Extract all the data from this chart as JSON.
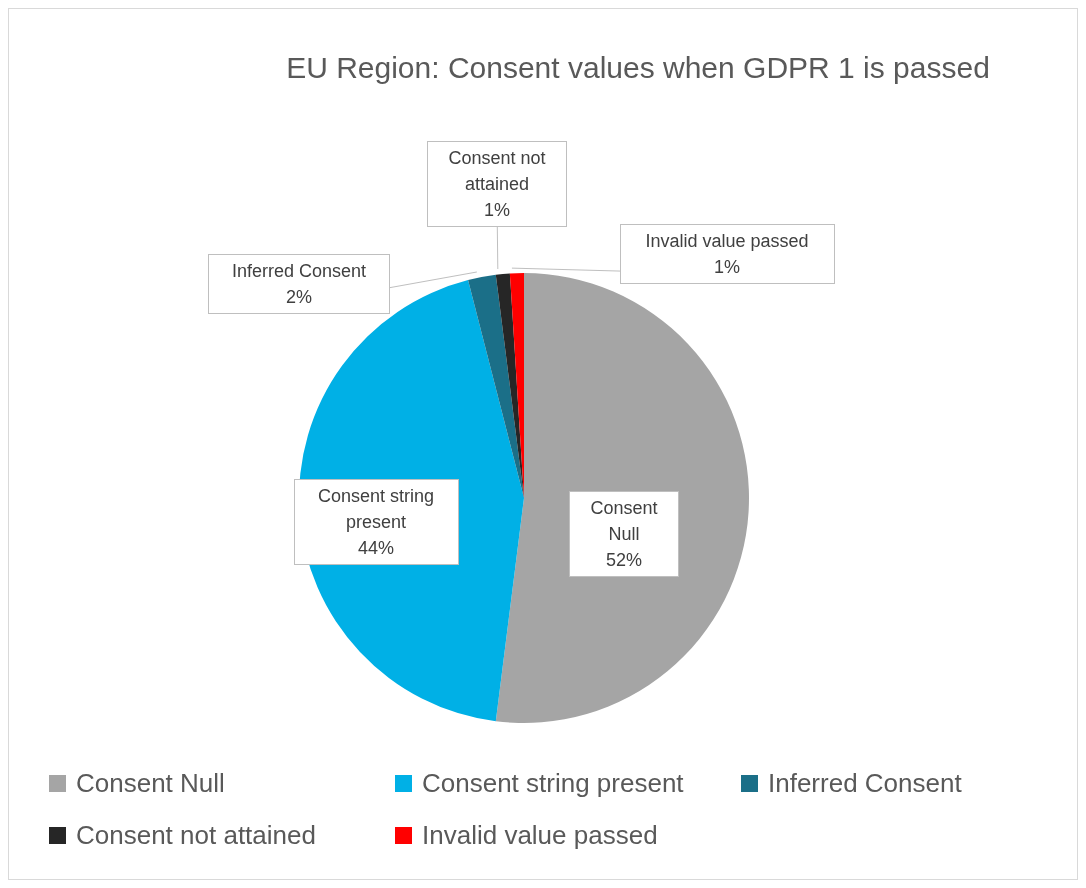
{
  "chart_data": {
    "type": "pie",
    "title": "EU Region: Consent values when GDPR 1 is passed",
    "categories": [
      "Consent Null",
      "Consent string present",
      "Inferred Consent",
      "Consent not attained",
      "Invalid value passed"
    ],
    "values": [
      52,
      44,
      2,
      1,
      1
    ],
    "colors": [
      "#a5a5a5",
      "#00b0e6",
      "#1b6f88",
      "#262626",
      "#ff0000"
    ],
    "value_labels": [
      "52%",
      "44%",
      "2%",
      "1%",
      "1%"
    ],
    "legend": "bottom"
  }
}
